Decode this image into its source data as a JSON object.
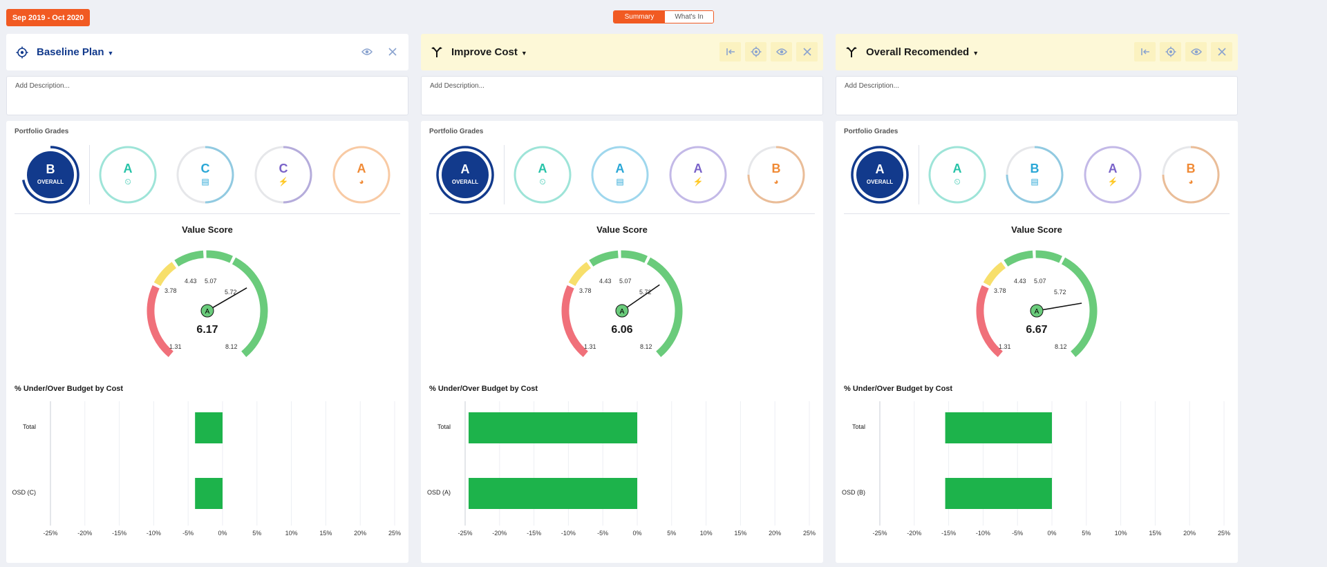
{
  "date_range": "Sep 2019 - Oct 2020",
  "view_toggle": {
    "summary": "Summary",
    "whats_in": "What's In"
  },
  "colors": {
    "accent": "#f15a22",
    "navy": "#123a8c",
    "bar": "#1db34b",
    "teal": "#27c3a8",
    "blue": "#2aa7d6",
    "purple": "#7a63c9",
    "orange": "#f08a35"
  },
  "columns": [
    {
      "title": "Baseline Plan",
      "header_style": "white",
      "icon": "target-icon",
      "description_placeholder": "Add Description...",
      "portfolio_label": "Portfolio Grades",
      "overall_grade": "B",
      "overall_label": "OVERALL",
      "grades": [
        {
          "letter": "A",
          "icon": "speedometer-icon",
          "color": "#27c3a8",
          "fill": 1.0
        },
        {
          "letter": "C",
          "icon": "money-icon",
          "color": "#2aa7d6",
          "fill": 0.5
        },
        {
          "letter": "C",
          "icon": "lightning-icon",
          "color": "#7a63c9",
          "fill": 0.5
        },
        {
          "letter": "A",
          "icon": "pie-icon",
          "color": "#f08a35",
          "fill": 1.0
        }
      ],
      "overall_fill": 0.72,
      "value_score_title": "Value Score",
      "value_score": "6.17",
      "needle_grade": "A",
      "gauge_labels": [
        "1.31",
        "3.78",
        "4.43",
        "5.07",
        "5.72",
        "8.12"
      ],
      "budget_title": "% Under/Over Budget by Cost",
      "bar_chart": {
        "categories": [
          "Total",
          "OSD (C)"
        ],
        "values": [
          -4,
          -4
        ],
        "xticks": [
          "-25%",
          "-20%",
          "-15%",
          "-10%",
          "-5%",
          "0%",
          "5%",
          "10%",
          "15%",
          "20%",
          "25%"
        ]
      }
    },
    {
      "title": "Improve Cost",
      "header_style": "yellow",
      "icon": "branch-icon",
      "description_placeholder": "Add Description...",
      "portfolio_label": "Portfolio Grades",
      "overall_grade": "A",
      "overall_label": "OVERALL",
      "grades": [
        {
          "letter": "A",
          "icon": "speedometer-icon",
          "color": "#27c3a8",
          "fill": 1.0
        },
        {
          "letter": "A",
          "icon": "money-icon",
          "color": "#2aa7d6",
          "fill": 1.0
        },
        {
          "letter": "A",
          "icon": "lightning-icon",
          "color": "#7a63c9",
          "fill": 1.0
        },
        {
          "letter": "B",
          "icon": "pie-icon",
          "color": "#f08a35",
          "fill": 0.75
        }
      ],
      "overall_fill": 1.0,
      "value_score_title": "Value Score",
      "value_score": "6.06",
      "needle_grade": "A",
      "gauge_labels": [
        "1.31",
        "3.78",
        "4.43",
        "5.07",
        "5.72",
        "8.12"
      ],
      "budget_title": "% Under/Over Budget by Cost",
      "bar_chart": {
        "categories": [
          "Total",
          "OSD (A)"
        ],
        "values": [
          -24.5,
          -24.5
        ],
        "xticks": [
          "-25%",
          "-20%",
          "-15%",
          "-10%",
          "-5%",
          "0%",
          "5%",
          "10%",
          "15%",
          "20%",
          "25%"
        ]
      }
    },
    {
      "title": "Overall Recomended",
      "header_style": "yellow",
      "icon": "branch-icon",
      "description_placeholder": "Add Description...",
      "portfolio_label": "Portfolio Grades",
      "overall_grade": "A",
      "overall_label": "OVERALL",
      "grades": [
        {
          "letter": "A",
          "icon": "speedometer-icon",
          "color": "#27c3a8",
          "fill": 1.0
        },
        {
          "letter": "B",
          "icon": "money-icon",
          "color": "#2aa7d6",
          "fill": 0.75
        },
        {
          "letter": "A",
          "icon": "lightning-icon",
          "color": "#7a63c9",
          "fill": 1.0
        },
        {
          "letter": "B",
          "icon": "pie-icon",
          "color": "#f08a35",
          "fill": 0.75
        }
      ],
      "overall_fill": 1.0,
      "value_score_title": "Value Score",
      "value_score": "6.67",
      "needle_grade": "A",
      "gauge_labels": [
        "1.31",
        "3.78",
        "4.43",
        "5.07",
        "5.72",
        "8.12"
      ],
      "budget_title": "% Under/Over Budget by Cost",
      "bar_chart": {
        "categories": [
          "Total",
          "OSD (B)"
        ],
        "values": [
          -15.5,
          -15.5
        ],
        "xticks": [
          "-25%",
          "-20%",
          "-15%",
          "-10%",
          "-5%",
          "0%",
          "5%",
          "10%",
          "15%",
          "20%",
          "25%"
        ]
      }
    }
  ]
}
